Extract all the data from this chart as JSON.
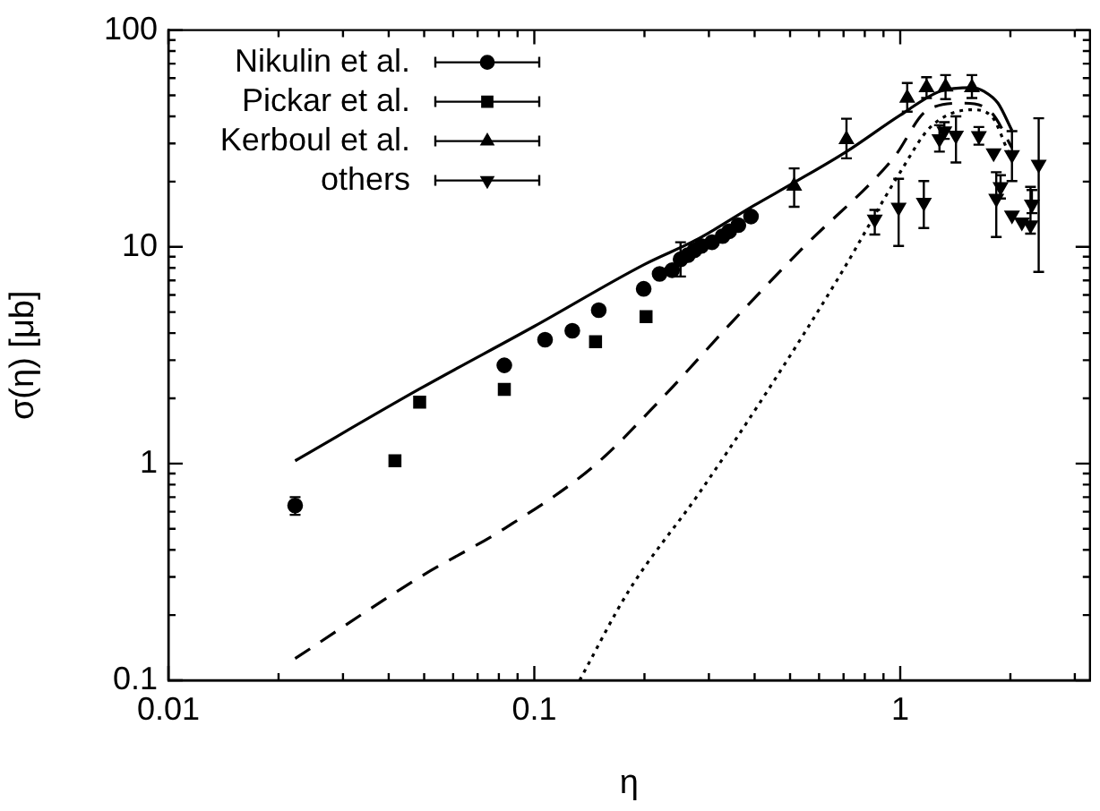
{
  "chart_data": {
    "type": "scatter",
    "xlabel": "η",
    "ylabel": "σ(η) [μb]",
    "log": "xy",
    "xlim": [
      0.01,
      3.3
    ],
    "ylim": [
      0.1,
      100
    ],
    "xticks": [
      0.01,
      {
        "value": 0.02,
        "label": null
      },
      {
        "value": 0.03,
        "label": null
      },
      {
        "value": 0.04,
        "label": null
      },
      {
        "value": 0.05,
        "label": null
      },
      {
        "value": 0.06,
        "label": null
      },
      {
        "value": 0.07,
        "label": null
      },
      {
        "value": 0.08,
        "label": null
      },
      {
        "value": 0.09,
        "label": null
      },
      0.1,
      {
        "value": 0.2,
        "label": null
      },
      {
        "value": 0.3,
        "label": null
      },
      {
        "value": 0.4,
        "label": null
      },
      {
        "value": 0.5,
        "label": null
      },
      {
        "value": 0.6,
        "label": null
      },
      {
        "value": 0.7,
        "label": null
      },
      {
        "value": 0.8,
        "label": null
      },
      {
        "value": 0.9,
        "label": null
      },
      1,
      {
        "value": 2,
        "label": null
      },
      {
        "value": 3,
        "label": null
      }
    ],
    "yticks": [
      0.1,
      {
        "value": 0.2,
        "label": null
      },
      {
        "value": 0.3,
        "label": null
      },
      {
        "value": 0.4,
        "label": null
      },
      {
        "value": 0.5,
        "label": null
      },
      {
        "value": 0.6,
        "label": null
      },
      {
        "value": 0.7,
        "label": null
      },
      {
        "value": 0.8,
        "label": null
      },
      {
        "value": 0.9,
        "label": null
      },
      1,
      {
        "value": 2,
        "label": null
      },
      {
        "value": 3,
        "label": null
      },
      {
        "value": 4,
        "label": null
      },
      {
        "value": 5,
        "label": null
      },
      {
        "value": 6,
        "label": null
      },
      {
        "value": 7,
        "label": null
      },
      {
        "value": 8,
        "label": null
      },
      {
        "value": 9,
        "label": null
      },
      10,
      {
        "value": 20,
        "label": null
      },
      {
        "value": 30,
        "label": null
      },
      {
        "value": 40,
        "label": null
      },
      {
        "value": 50,
        "label": null
      },
      {
        "value": 60,
        "label": null
      },
      {
        "value": 70,
        "label": null
      },
      {
        "value": 80,
        "label": null
      },
      {
        "value": 90,
        "label": null
      },
      100
    ],
    "legend": "top left",
    "grid": false,
    "series": [
      {
        "name": "Nikulin et al.",
        "marker": "circle",
        "color": "#000000",
        "x": [
          0.0222,
          0.0828,
          0.107,
          0.127,
          0.15,
          0.199,
          0.22,
          0.238,
          0.251,
          0.263,
          0.274,
          0.286,
          0.306,
          0.327,
          0.341,
          0.361,
          0.391
        ],
        "values": [
          0.64,
          2.84,
          3.73,
          4.1,
          5.1,
          6.4,
          7.5,
          7.8,
          8.76,
          9.16,
          9.64,
          10.1,
          10.5,
          11.2,
          11.8,
          12.6,
          13.8
        ],
        "errors": [
          [
            0.58,
            0.7
          ],
          null,
          null,
          null,
          null,
          null,
          null,
          null,
          [
            7.3,
            10.5
          ],
          null,
          null,
          null,
          null,
          null,
          null,
          null,
          null
        ]
      },
      {
        "name": "Pickar et al.",
        "marker": "square",
        "color": "#000000",
        "x": [
          0.0416,
          0.0486,
          0.0828,
          0.147,
          0.202
        ],
        "values": [
          1.03,
          1.92,
          2.2,
          3.65,
          4.76
        ]
      },
      {
        "name": "Kerboul et al.",
        "marker": "triangle",
        "color": "#000000",
        "x": [
          0.513,
          0.713,
          1.045,
          1.18,
          1.33,
          1.57
        ],
        "values": [
          19.1,
          31.3,
          48.6,
          54.3,
          54.7,
          54.3
        ],
        "errors": [
          [
            15.3,
            23
          ],
          [
            25.6,
            39
          ],
          [
            42,
            57
          ],
          [
            48.6,
            60.6
          ],
          [
            48,
            62
          ],
          [
            48.6,
            62
          ]
        ]
      },
      {
        "name": "others",
        "marker": "triangle-down",
        "color": "#000000",
        "x": [
          0.852,
          0.99,
          1.16,
          1.28,
          1.32,
          1.42,
          1.64,
          1.8,
          2.02,
          1.88,
          1.83,
          2.02,
          2.15,
          2.27,
          2.29,
          2.39
        ],
        "values": [
          13.4,
          15.2,
          16.0,
          31.5,
          34.2,
          32.7,
          32.5,
          27.1,
          26.6,
          18.9,
          16.7,
          14.0,
          13.0,
          12.6,
          15.7,
          24
        ],
        "errors": [
          [
            11.4,
            14.8
          ],
          [
            10.1,
            20.6
          ],
          [
            12.2,
            20.1
          ],
          [
            27.5,
            36.4
          ],
          [
            31.5,
            37.6
          ],
          [
            24.5,
            40
          ],
          [
            29.6,
            35.7
          ],
          null,
          [
            20.1,
            34.2
          ],
          [
            16.7,
            21.4
          ],
          [
            11.1,
            22.1
          ],
          null,
          null,
          [
            11.5,
            18.9
          ],
          [
            14.3,
            18.3
          ],
          [
            7.66,
            39.2
          ]
        ]
      },
      {
        "type": "line",
        "line_style": "solid",
        "marker": "none",
        "color": "#000000",
        "x": [
          0.0222,
          0.0486,
          0.1,
          0.2,
          0.281,
          0.398,
          0.513,
          0.713,
          1.0,
          1.29,
          1.57,
          1.7,
          1.85,
          2.02
        ],
        "values": [
          1.03,
          2.21,
          4.3,
          8.3,
          10.9,
          15.5,
          19.8,
          27.5,
          40.5,
          52.3,
          54.3,
          52,
          46,
          34.4
        ]
      },
      {
        "type": "line",
        "line_style": "dashed",
        "marker": "none",
        "color": "#000000",
        "x": [
          0.0222,
          0.0486,
          0.0828,
          0.145,
          0.225,
          0.349,
          0.541,
          0.957,
          1.19,
          1.49,
          1.78,
          2.02
        ],
        "values": [
          0.126,
          0.299,
          0.501,
          0.97,
          2.03,
          4.55,
          9.86,
          25.6,
          42.9,
          46,
          41.4,
          28.6
        ]
      },
      {
        "type": "line",
        "line_style": "dotted",
        "marker": "none",
        "color": "#000000",
        "x": [
          0.133,
          0.181,
          0.281,
          0.435,
          0.674,
          1.0,
          1.21,
          1.57,
          1.78,
          1.97
        ],
        "values": [
          0.1,
          0.258,
          0.723,
          2.18,
          7.08,
          22.1,
          35.7,
          42.9,
          39.9,
          27.6
        ]
      }
    ]
  }
}
